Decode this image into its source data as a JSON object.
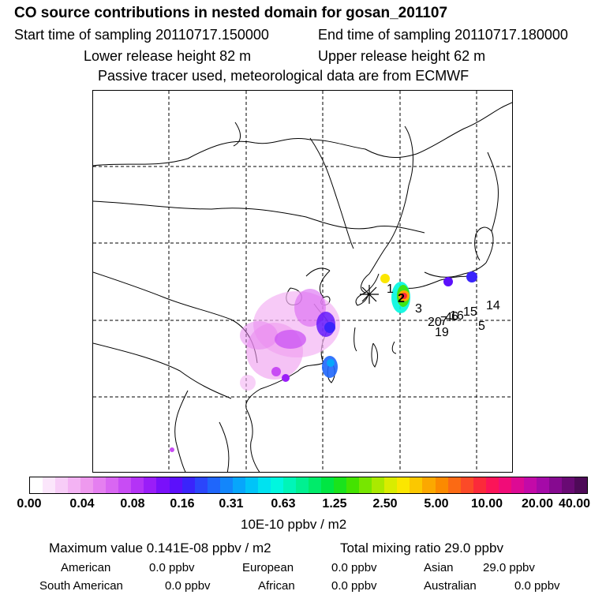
{
  "header": {
    "title": "CO  source contributions in nested domain for gosan_201107",
    "start": "Start time of sampling 20110717.150000",
    "end": "End time of sampling 20110717.180000",
    "lower": "Lower release height   82 m",
    "upper": "Upper release height   62 m",
    "note": "Passive tracer used, meteorological data are from ECMWF"
  },
  "map": {
    "labels": [
      "1",
      "2",
      "3",
      "4",
      "5",
      "6",
      "7",
      "14",
      "15",
      "16",
      "19",
      "20"
    ]
  },
  "colorbar": {
    "ticks": [
      "0.00",
      "0.04",
      "0.08",
      "0.16",
      "0.31",
      "0.63",
      "1.25",
      "2.50",
      "5.00",
      "10.00",
      "20.00",
      "40.00"
    ],
    "unit": "10E-10 ppbv / m2",
    "colors": [
      "#ffffff",
      "#fbe6fb",
      "#f7cdf7",
      "#f3b3f3",
      "#ee99ee",
      "#e57ff0",
      "#d966f2",
      "#c84cf4",
      "#b433f6",
      "#9a1df8",
      "#7a10fa",
      "#5c10fb",
      "#3a24fb",
      "#2b46fb",
      "#1f66fb",
      "#1386fb",
      "#07a6fb",
      "#00c4f8",
      "#00e2f0",
      "#00f7df",
      "#00f5b8",
      "#00f091",
      "#00eb6a",
      "#00e643",
      "#1ae31c",
      "#44e300",
      "#77e600",
      "#aae900",
      "#d9ec00",
      "#fbe600",
      "#fbc800",
      "#fba800",
      "#fb8a00",
      "#fb6a14",
      "#fb4a28",
      "#fb2a3a",
      "#fb1458",
      "#f10c78",
      "#dd0a94",
      "#c30aa8",
      "#a50aa8",
      "#860a90",
      "#690a74",
      "#4e0a58"
    ]
  },
  "footer": {
    "max": "Maximum value  0.141E-08 ppbv / m2",
    "total": "Total mixing ratio       29.0 ppbv",
    "american_label": "American",
    "american_value": "0.0 ppbv",
    "european_label": "European",
    "european_value": "0.0 ppbv",
    "asian_label": "Asian",
    "asian_value": "29.0 ppbv",
    "samerican_label": "South American",
    "samerican_value": "0.0 ppbv",
    "african_label": "African",
    "african_value": "0.0 ppbv",
    "australian_label": "Australian",
    "australian_value": "0.0 ppbv"
  }
}
